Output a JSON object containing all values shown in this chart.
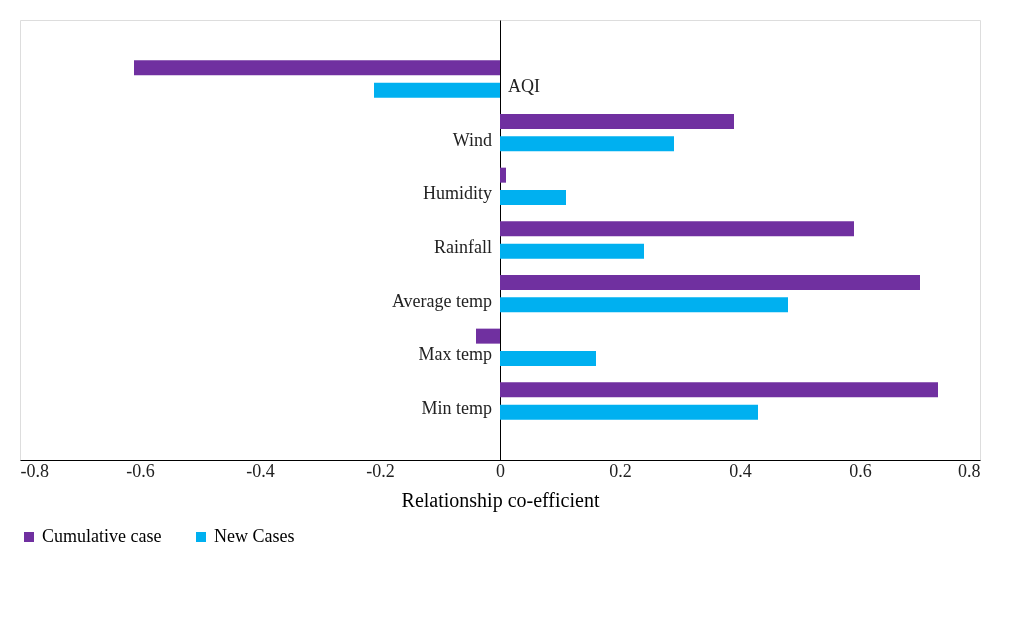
{
  "chart_data": {
    "type": "bar",
    "orientation": "horizontal",
    "xlabel": "Relationship co-efficient",
    "categories": [
      "AQI",
      "Wind",
      "Humidity",
      "Rainfall",
      "Average temp",
      "Max temp",
      "Min temp"
    ],
    "series": [
      {
        "name": "Cumulative case",
        "color": "#7030a0",
        "values": [
          -0.61,
          0.39,
          0.01,
          0.59,
          0.7,
          -0.04,
          0.73
        ]
      },
      {
        "name": "New Cases",
        "color": "#00b0f0",
        "values": [
          -0.21,
          0.29,
          0.11,
          0.24,
          0.48,
          0.16,
          0.43
        ]
      }
    ],
    "xlim": [
      -0.8,
      0.8
    ],
    "xticks": [
      -0.8,
      -0.6,
      -0.4,
      -0.2,
      0,
      0.2,
      0.4,
      0.6,
      0.8
    ],
    "grid": false,
    "legend": "bottom"
  }
}
